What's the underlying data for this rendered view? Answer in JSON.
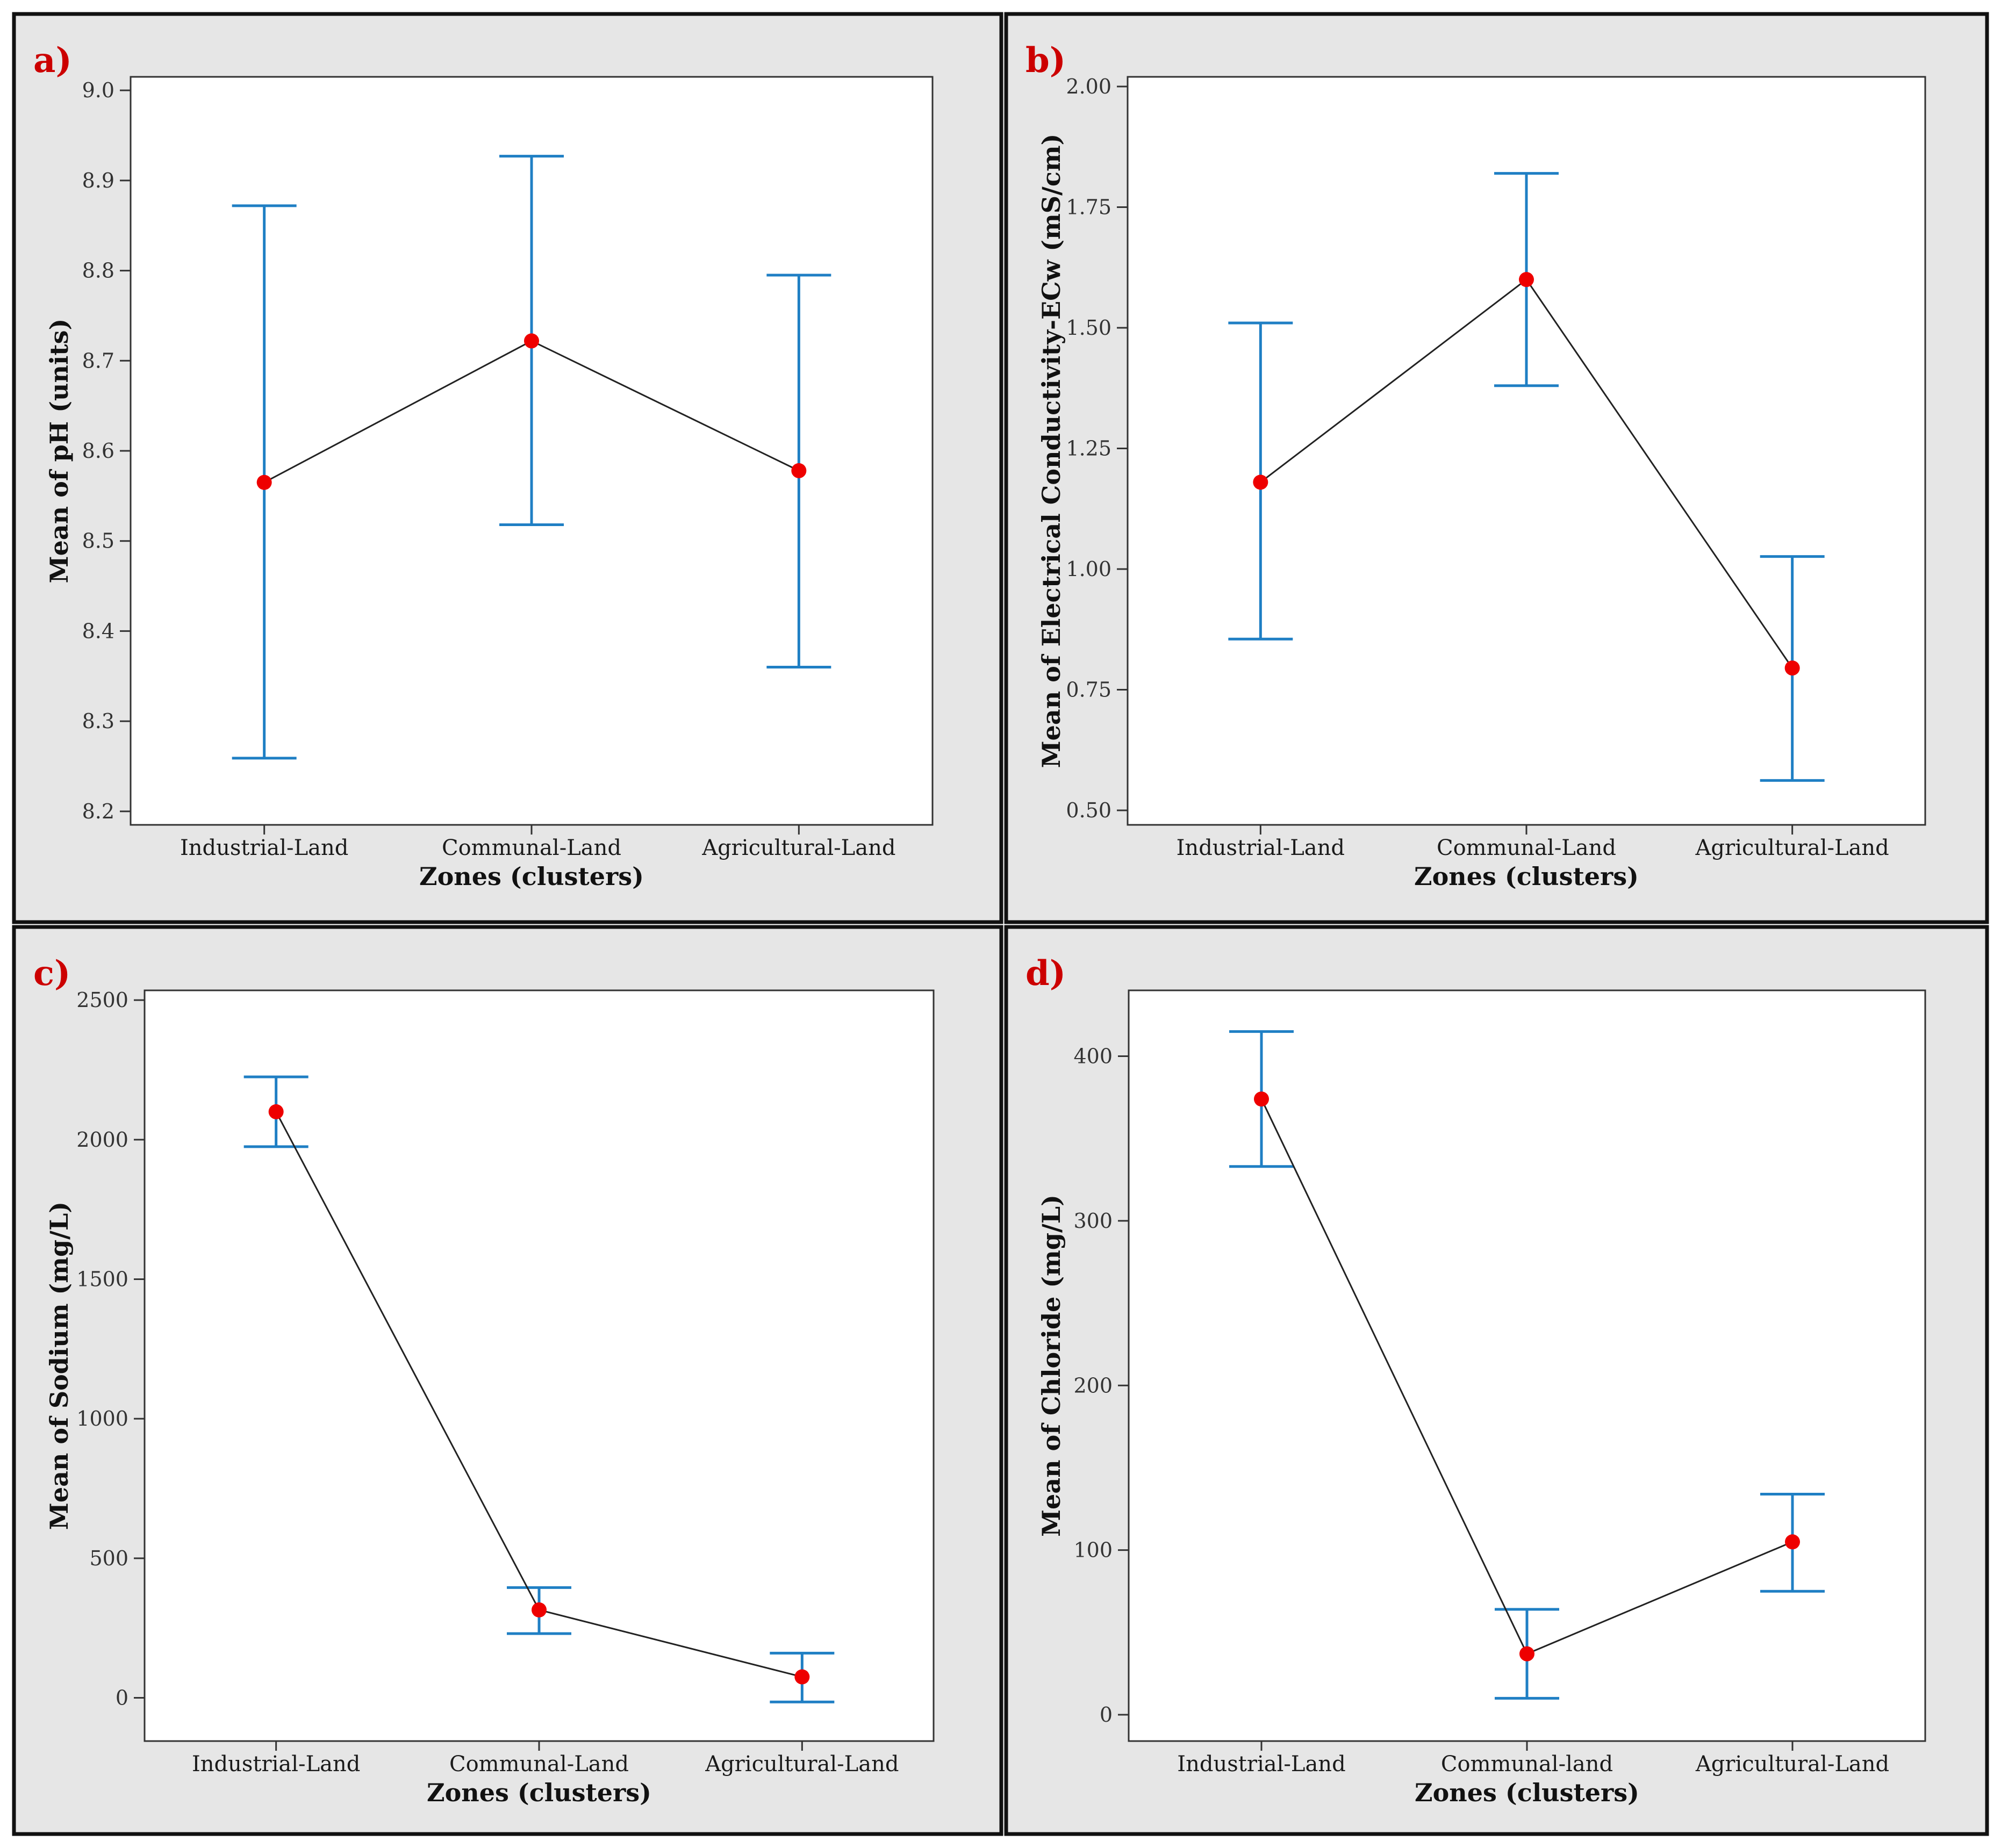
{
  "figure": {
    "background_color": "#e6e6e6",
    "border_color": "#111111",
    "errorbar_color": "#1f7fc4",
    "mean_color": "#ee0000",
    "line_color": "#222222",
    "panel_label_color": "#cc0000"
  },
  "chart_data": [
    {
      "panel": "a)",
      "type": "errorbar",
      "categories": [
        "Industrial-Land",
        "Communal-Land",
        "Agricultural-Land"
      ],
      "mean": [
        8.565,
        8.722,
        8.578
      ],
      "lower": [
        8.259,
        8.518,
        8.36
      ],
      "upper": [
        8.872,
        8.927,
        8.795
      ],
      "ylim": [
        8.185,
        9.015
      ],
      "yticks": [
        8.2,
        8.3,
        8.4,
        8.5,
        8.6,
        8.7,
        8.8,
        8.9,
        9.0
      ],
      "ytick_labels": [
        "8.2",
        "8.3",
        "8.4",
        "8.5",
        "8.6",
        "8.7",
        "8.8",
        "8.9",
        "9.0"
      ],
      "xlabel": "Zones (clusters)",
      "ylabel": "Mean of pH (units)"
    },
    {
      "panel": "b)",
      "type": "errorbar",
      "categories": [
        "Industrial-Land",
        "Communal-Land",
        "Agricultural-Land"
      ],
      "mean": [
        1.18,
        1.6,
        0.795
      ],
      "lower": [
        0.855,
        1.38,
        0.562
      ],
      "upper": [
        1.51,
        1.82,
        1.026
      ],
      "ylim": [
        0.47,
        2.02
      ],
      "yticks": [
        0.5,
        0.75,
        1.0,
        1.25,
        1.5,
        1.75,
        2.0
      ],
      "ytick_labels": [
        "0.50",
        "0.75",
        "1.00",
        "1.25",
        "1.50",
        "1.75",
        "2.00"
      ],
      "xlabel": "Zones (clusters)",
      "ylabel": "Mean of Electrical Conductivity-ECw (mS/cm)"
    },
    {
      "panel": "c)",
      "type": "errorbar",
      "categories": [
        "Industrial-Land",
        "Communal-Land",
        "Agricultural-Land"
      ],
      "mean": [
        2100,
        315,
        75
      ],
      "lower": [
        1975,
        230,
        -15
      ],
      "upper": [
        2225,
        395,
        160
      ],
      "ylim": [
        -155,
        2535
      ],
      "yticks": [
        0,
        500,
        1000,
        1500,
        2000,
        2500
      ],
      "ytick_labels": [
        "0",
        "500",
        "1000",
        "1500",
        "2000",
        "2500"
      ],
      "xlabel": "Zones (clusters)",
      "ylabel": "Mean of Sodium (mg/L)"
    },
    {
      "panel": "d)",
      "type": "errorbar",
      "categories": [
        "Industrial-Land",
        "Communal-land",
        "Agricultural-Land"
      ],
      "mean": [
        374,
        37,
        105
      ],
      "lower": [
        333,
        10,
        75
      ],
      "upper": [
        415,
        64,
        134
      ],
      "ylim": [
        -16,
        440
      ],
      "yticks": [
        0,
        100,
        200,
        300,
        400
      ],
      "ytick_labels": [
        "0",
        "100",
        "200",
        "300",
        "400"
      ],
      "xlabel": "Zones (clusters)",
      "ylabel": "Mean of Chloride (mg/L)"
    }
  ]
}
